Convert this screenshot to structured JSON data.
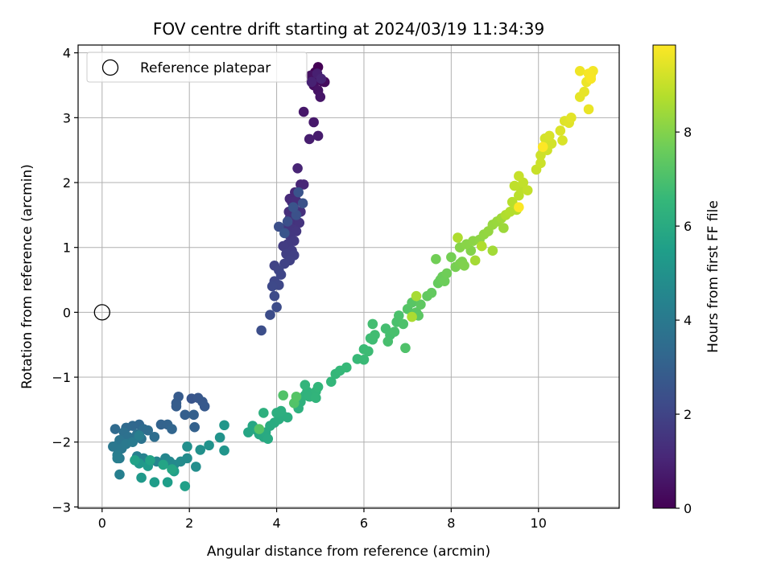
{
  "chart_data": {
    "type": "scatter",
    "title": "FOV centre drift starting at 2024/03/19 11:34:39",
    "xlabel": "Angular distance from reference (arcmin)",
    "ylabel": "Rotation from reference (arcmin)",
    "xlim": [
      -0.55,
      11.85
    ],
    "ylim": [
      -3.02,
      4.12
    ],
    "xticks": [
      0,
      2,
      4,
      6,
      8,
      10
    ],
    "yticks": [
      -3,
      -2,
      -1,
      0,
      1,
      2,
      3,
      4
    ],
    "grid": true,
    "legend": {
      "position": "top-left",
      "entries": [
        "Reference platepar"
      ]
    },
    "reference_point": {
      "x": 0,
      "y": 0,
      "label": "Reference platepar"
    },
    "colorbar": {
      "label": "Hours from first FF file",
      "colormap": "viridis",
      "range": [
        0,
        9.85
      ],
      "ticks": [
        0,
        2,
        4,
        6,
        8
      ]
    },
    "series": [
      {
        "color_value_range": [
          0,
          1.0
        ],
        "points": [
          [
            4.95,
            3.78
          ],
          [
            4.88,
            3.7
          ],
          [
            4.82,
            3.62
          ],
          [
            4.9,
            3.58
          ],
          [
            5.05,
            3.56
          ],
          [
            5.1,
            3.55
          ],
          [
            4.85,
            3.5
          ],
          [
            4.78,
            3.65
          ],
          [
            4.95,
            3.42
          ],
          [
            5.0,
            3.32
          ],
          [
            4.62,
            3.09
          ],
          [
            4.85,
            2.93
          ],
          [
            4.95,
            2.72
          ],
          [
            4.75,
            2.67
          ],
          [
            4.93,
            3.68
          ],
          [
            4.8,
            3.55
          ],
          [
            5.02,
            3.6
          ]
        ]
      },
      {
        "color_value_range": [
          1.0,
          2.6
        ],
        "points": [
          [
            4.48,
            2.22
          ],
          [
            4.55,
            1.97
          ],
          [
            4.62,
            1.97
          ],
          [
            4.42,
            1.85
          ],
          [
            4.3,
            1.75
          ],
          [
            4.35,
            1.7
          ],
          [
            4.45,
            1.72
          ],
          [
            4.4,
            1.6
          ],
          [
            4.28,
            1.55
          ],
          [
            4.55,
            1.55
          ],
          [
            4.3,
            1.45
          ],
          [
            4.42,
            1.42
          ],
          [
            4.52,
            1.38
          ],
          [
            4.2,
            1.3
          ],
          [
            4.35,
            1.28
          ],
          [
            4.45,
            1.25
          ],
          [
            4.3,
            1.18
          ],
          [
            4.4,
            1.1
          ],
          [
            4.25,
            1.05
          ],
          [
            4.15,
            1.02
          ],
          [
            4.35,
            0.95
          ],
          [
            4.22,
            0.9
          ],
          [
            4.4,
            0.88
          ],
          [
            4.3,
            0.8
          ],
          [
            4.18,
            0.75
          ],
          [
            3.95,
            0.72
          ],
          [
            4.05,
            0.65
          ],
          [
            4.1,
            0.58
          ],
          [
            3.95,
            0.48
          ],
          [
            4.05,
            0.42
          ],
          [
            3.9,
            0.4
          ],
          [
            3.95,
            0.25
          ],
          [
            4.0,
            0.08
          ],
          [
            3.85,
            -0.04
          ],
          [
            3.65,
            -0.28
          ],
          [
            4.05,
            1.32
          ],
          [
            4.25,
            1.4
          ],
          [
            4.45,
            1.5
          ],
          [
            4.6,
            1.68
          ],
          [
            4.5,
            1.85
          ],
          [
            4.38,
            1.62
          ],
          [
            4.18,
            1.22
          ]
        ]
      },
      {
        "color_value_range": [
          2.6,
          4.2
        ],
        "points": [
          [
            2.05,
            -1.33
          ],
          [
            2.2,
            -1.32
          ],
          [
            2.3,
            -1.38
          ],
          [
            2.35,
            -1.45
          ],
          [
            1.75,
            -1.3
          ],
          [
            1.7,
            -1.4
          ],
          [
            1.7,
            -1.45
          ],
          [
            1.9,
            -1.58
          ],
          [
            2.1,
            -1.58
          ],
          [
            2.12,
            -1.77
          ],
          [
            1.35,
            -1.73
          ],
          [
            1.5,
            -1.73
          ],
          [
            1.6,
            -1.8
          ],
          [
            0.85,
            -1.73
          ],
          [
            0.7,
            -1.75
          ],
          [
            0.55,
            -1.78
          ],
          [
            0.3,
            -1.8
          ],
          [
            0.95,
            -1.8
          ],
          [
            1.05,
            -1.82
          ],
          [
            1.2,
            -1.92
          ],
          [
            0.5,
            -1.85
          ],
          [
            0.6,
            -1.92
          ],
          [
            0.8,
            -1.88
          ],
          [
            0.9,
            -1.95
          ],
          [
            0.4,
            -1.97
          ],
          [
            0.35,
            -2.05
          ],
          [
            0.25,
            -2.07
          ],
          [
            0.45,
            -2.1
          ],
          [
            0.55,
            -2.03
          ],
          [
            0.7,
            -2.0
          ],
          [
            0.4,
            -2.25
          ],
          [
            0.35,
            -2.2
          ],
          [
            0.85,
            -1.9
          ]
        ]
      },
      {
        "color_value_range": [
          4.2,
          5.8
        ],
        "points": [
          [
            0.35,
            -2.25
          ],
          [
            0.4,
            -2.5
          ],
          [
            0.8,
            -2.22
          ],
          [
            0.95,
            -2.25
          ],
          [
            1.05,
            -2.3
          ],
          [
            1.25,
            -2.3
          ],
          [
            1.45,
            -2.25
          ],
          [
            1.55,
            -2.3
          ],
          [
            1.65,
            -2.35
          ],
          [
            1.8,
            -2.3
          ],
          [
            1.95,
            -2.25
          ],
          [
            2.15,
            -2.38
          ],
          [
            1.95,
            -2.07
          ],
          [
            2.25,
            -2.12
          ],
          [
            2.45,
            -2.05
          ],
          [
            2.7,
            -1.93
          ],
          [
            2.8,
            -2.13
          ],
          [
            2.8,
            -1.74
          ],
          [
            0.85,
            -2.33
          ],
          [
            0.9,
            -2.55
          ],
          [
            1.05,
            -2.37
          ],
          [
            1.2,
            -2.62
          ],
          [
            1.5,
            -2.62
          ],
          [
            1.65,
            -2.45
          ],
          [
            1.9,
            -2.68
          ],
          [
            0.75,
            -2.28
          ],
          [
            1.1,
            -2.28
          ],
          [
            1.4,
            -2.35
          ],
          [
            1.6,
            -2.42
          ]
        ]
      },
      {
        "color_value_range": [
          5.8,
          7.2
        ],
        "points": [
          [
            3.35,
            -1.85
          ],
          [
            3.45,
            -1.75
          ],
          [
            3.55,
            -1.82
          ],
          [
            3.6,
            -1.88
          ],
          [
            3.7,
            -1.92
          ],
          [
            3.75,
            -1.85
          ],
          [
            3.8,
            -1.95
          ],
          [
            3.85,
            -1.75
          ],
          [
            3.95,
            -1.7
          ],
          [
            4.05,
            -1.65
          ],
          [
            4.15,
            -1.6
          ],
          [
            4.25,
            -1.62
          ],
          [
            4.0,
            -1.55
          ],
          [
            4.1,
            -1.52
          ],
          [
            3.7,
            -1.55
          ],
          [
            4.5,
            -1.48
          ],
          [
            4.55,
            -1.38
          ],
          [
            4.65,
            -1.28
          ],
          [
            4.7,
            -1.22
          ],
          [
            4.75,
            -1.3
          ],
          [
            4.9,
            -1.22
          ],
          [
            4.9,
            -1.32
          ],
          [
            4.65,
            -1.12
          ],
          [
            4.95,
            -1.15
          ],
          [
            5.25,
            -1.07
          ],
          [
            5.35,
            -0.95
          ],
          [
            5.45,
            -0.9
          ],
          [
            5.6,
            -0.85
          ],
          [
            5.85,
            -0.72
          ],
          [
            6.0,
            -0.73
          ],
          [
            6.0,
            -0.57
          ],
          [
            6.1,
            -0.6
          ],
          [
            6.15,
            -0.4
          ],
          [
            6.2,
            -0.42
          ],
          [
            6.25,
            -0.35
          ],
          [
            6.2,
            -0.18
          ],
          [
            6.5,
            -0.25
          ],
          [
            6.6,
            -0.35
          ],
          [
            6.55,
            -0.45
          ],
          [
            6.7,
            -0.3
          ],
          [
            6.75,
            -0.15
          ],
          [
            6.8,
            -0.05
          ],
          [
            6.9,
            -0.18
          ],
          [
            6.95,
            -0.55
          ],
          [
            4.15,
            -1.28
          ],
          [
            4.4,
            -1.4
          ],
          [
            3.6,
            -1.8
          ],
          [
            4.45,
            -1.3
          ]
        ]
      },
      {
        "color_value_range": [
          7.2,
          8.7
        ],
        "points": [
          [
            7.0,
            0.05
          ],
          [
            7.1,
            0.15
          ],
          [
            7.2,
            0.0
          ],
          [
            7.25,
            -0.05
          ],
          [
            7.3,
            0.12
          ],
          [
            7.45,
            0.25
          ],
          [
            7.55,
            0.3
          ],
          [
            7.7,
            0.45
          ],
          [
            7.75,
            0.5
          ],
          [
            7.8,
            0.55
          ],
          [
            7.85,
            0.48
          ],
          [
            7.9,
            0.6
          ],
          [
            7.65,
            0.82
          ],
          [
            8.0,
            0.85
          ],
          [
            8.1,
            0.7
          ],
          [
            8.2,
            0.75
          ],
          [
            8.25,
            0.78
          ],
          [
            8.3,
            0.72
          ],
          [
            8.45,
            0.95
          ],
          [
            8.2,
            1.0
          ],
          [
            8.35,
            1.05
          ],
          [
            8.5,
            1.1
          ],
          [
            8.65,
            1.12
          ],
          [
            8.75,
            1.2
          ],
          [
            8.85,
            1.25
          ],
          [
            8.95,
            1.35
          ],
          [
            9.05,
            1.4
          ],
          [
            9.2,
            1.3
          ],
          [
            9.15,
            1.45
          ],
          [
            8.95,
            0.95
          ],
          [
            8.55,
            0.8
          ],
          [
            7.2,
            0.25
          ],
          [
            7.1,
            -0.07
          ],
          [
            8.15,
            1.15
          ],
          [
            8.7,
            1.02
          ]
        ]
      },
      {
        "color_value_range": [
          8.7,
          9.85
        ],
        "points": [
          [
            9.25,
            1.5
          ],
          [
            9.35,
            1.55
          ],
          [
            9.5,
            1.58
          ],
          [
            9.4,
            1.7
          ],
          [
            9.55,
            1.8
          ],
          [
            9.6,
            1.9
          ],
          [
            9.45,
            1.95
          ],
          [
            9.65,
            2.0
          ],
          [
            9.75,
            1.88
          ],
          [
            9.55,
            2.1
          ],
          [
            9.95,
            2.2
          ],
          [
            10.05,
            2.3
          ],
          [
            10.05,
            2.42
          ],
          [
            10.2,
            2.5
          ],
          [
            10.3,
            2.6
          ],
          [
            10.15,
            2.68
          ],
          [
            10.25,
            2.72
          ],
          [
            10.55,
            2.65
          ],
          [
            10.5,
            2.8
          ],
          [
            10.6,
            2.95
          ],
          [
            10.7,
            2.92
          ],
          [
            10.75,
            3.0
          ],
          [
            10.95,
            3.32
          ],
          [
            11.05,
            3.4
          ],
          [
            11.15,
            3.13
          ],
          [
            11.1,
            3.55
          ],
          [
            10.95,
            3.72
          ],
          [
            11.2,
            3.65
          ],
          [
            11.25,
            3.72
          ],
          [
            11.15,
            3.68
          ],
          [
            11.2,
            3.6
          ],
          [
            9.55,
            1.62
          ],
          [
            10.1,
            2.55
          ]
        ]
      }
    ]
  }
}
